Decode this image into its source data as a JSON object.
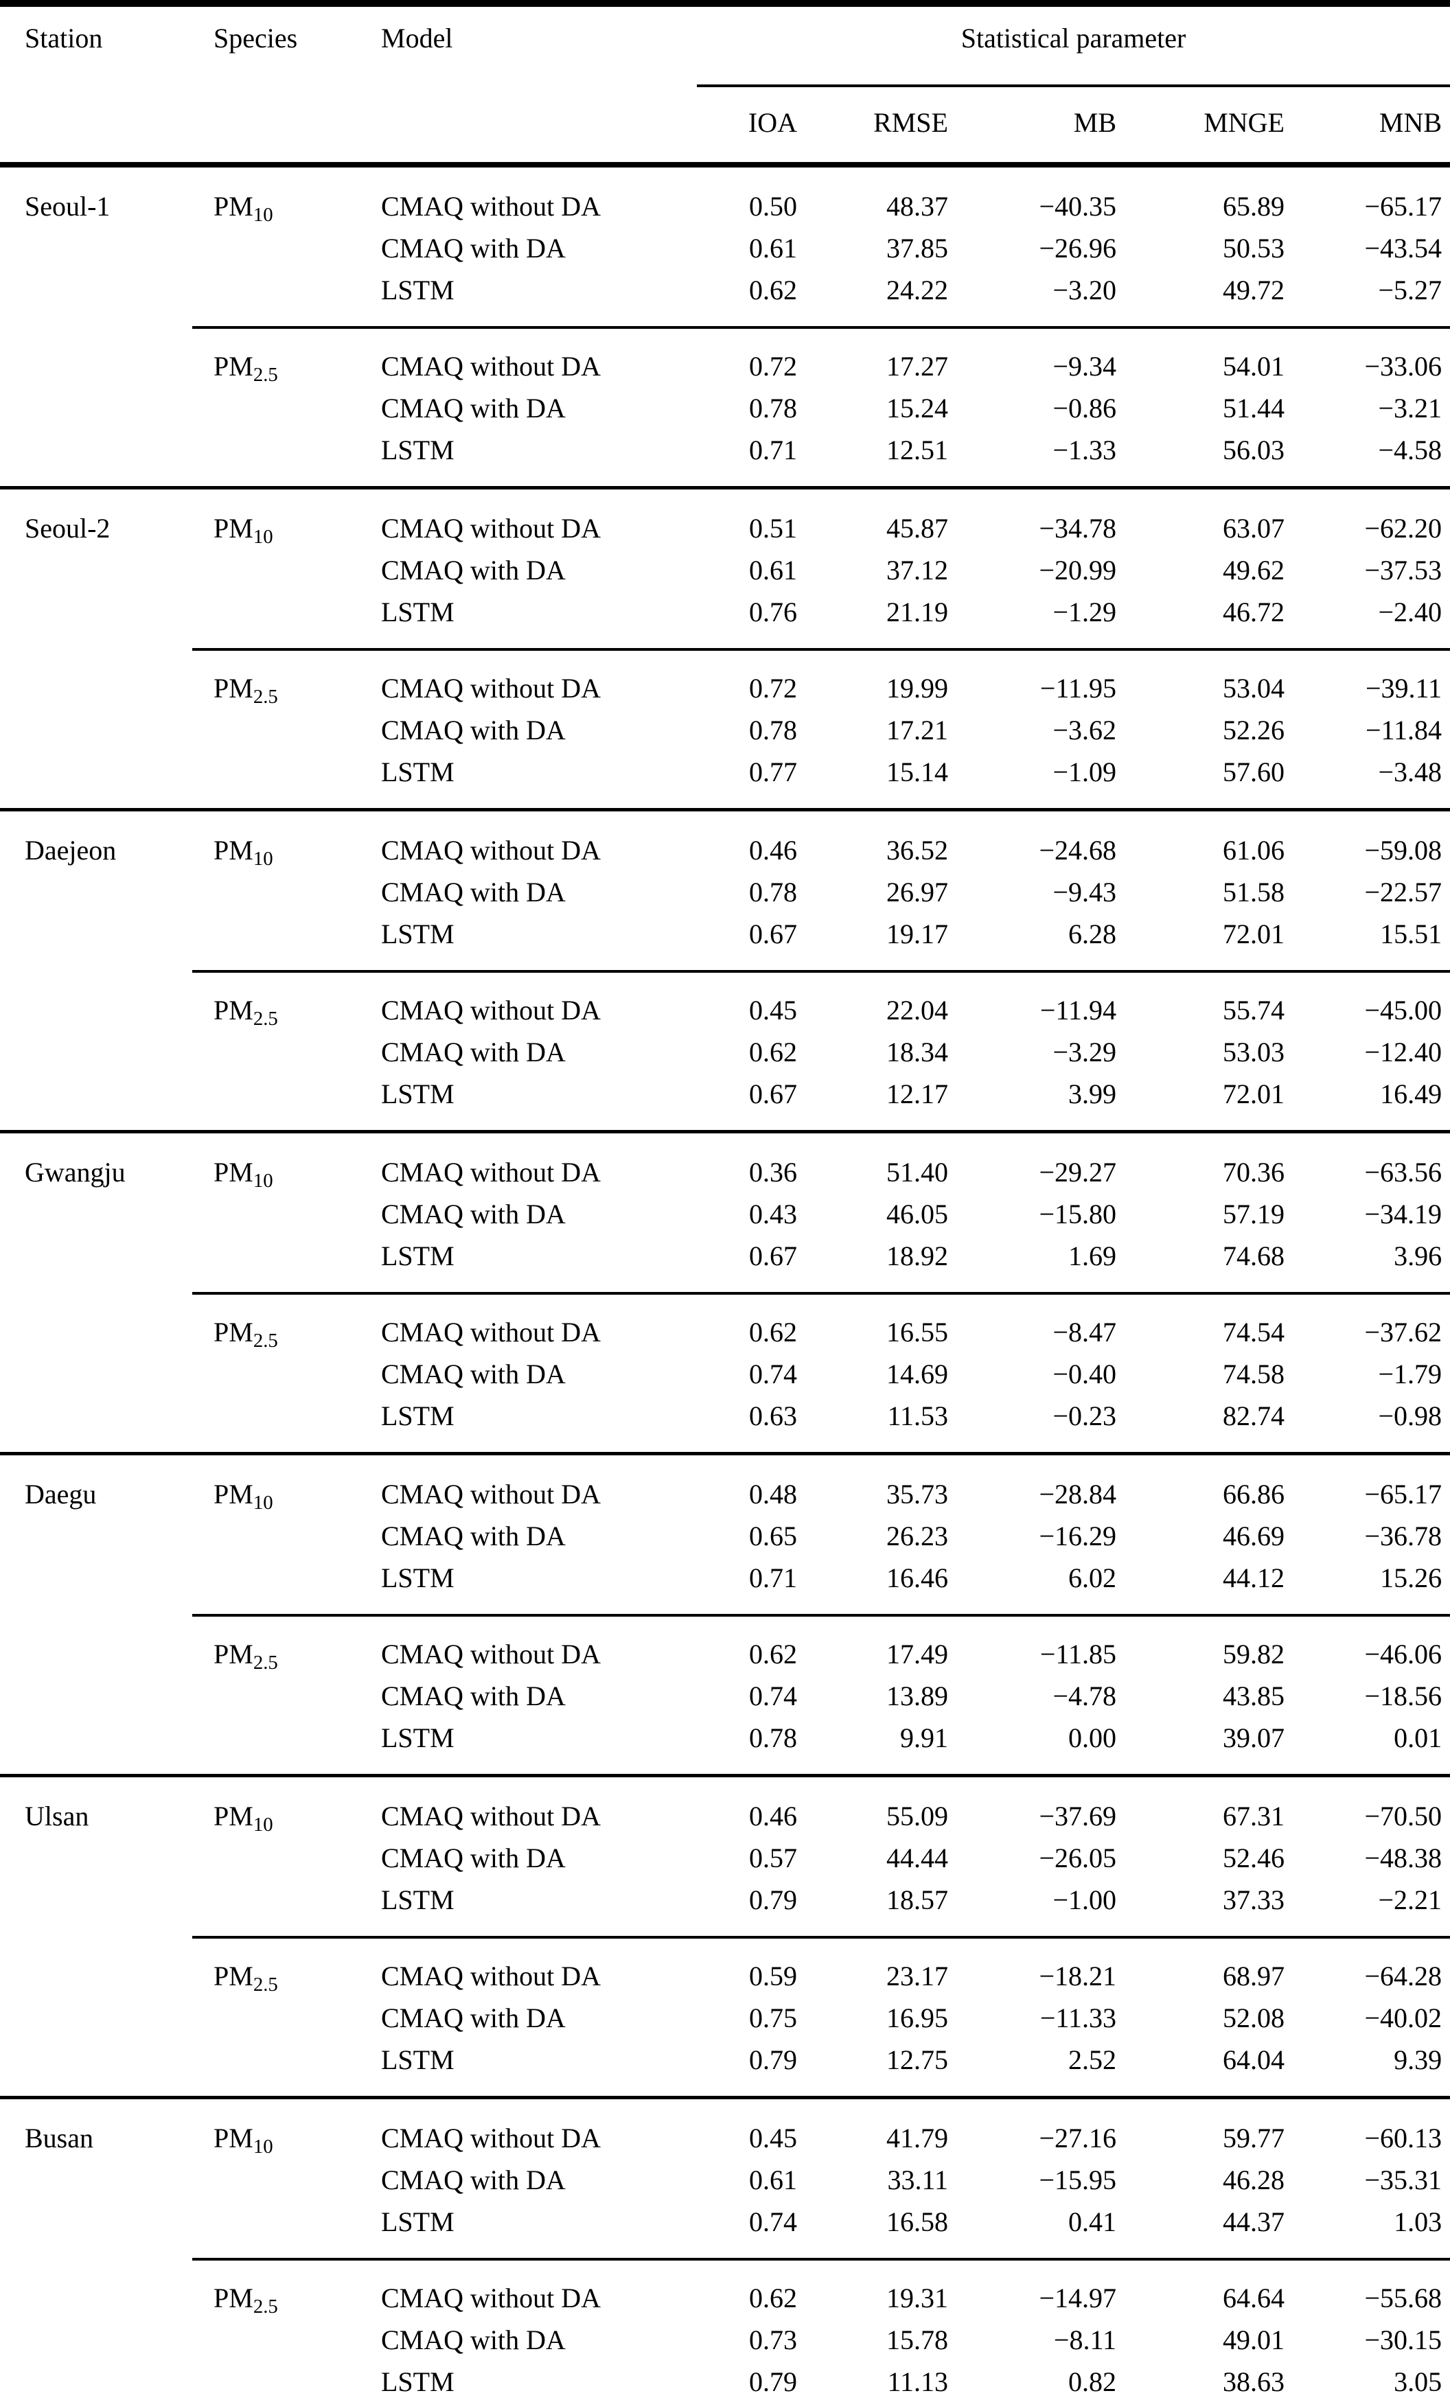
{
  "colors": {
    "text": "#000000",
    "background": "#ffffff",
    "rule": "#000000"
  },
  "table": {
    "columns": {
      "station": "Station",
      "species": "Species",
      "model": "Model",
      "stat_group": "Statistical parameter",
      "stats": [
        "IOA",
        "RMSE",
        "MB",
        "MNGE",
        "MNB"
      ]
    },
    "stations": [
      {
        "name": "Seoul-1",
        "species_blocks": [
          {
            "species_base": "PM",
            "species_sub": "10",
            "rows": [
              {
                "model": "CMAQ without DA",
                "values": [
                  "0.50",
                  "48.37",
                  "−40.35",
                  "65.89",
                  "−65.17"
                ]
              },
              {
                "model": "CMAQ with DA",
                "values": [
                  "0.61",
                  "37.85",
                  "−26.96",
                  "50.53",
                  "−43.54"
                ]
              },
              {
                "model": "LSTM",
                "values": [
                  "0.62",
                  "24.22",
                  "−3.20",
                  "49.72",
                  "−5.27"
                ]
              }
            ]
          },
          {
            "species_base": "PM",
            "species_sub": "2.5",
            "rows": [
              {
                "model": "CMAQ without DA",
                "values": [
                  "0.72",
                  "17.27",
                  "−9.34",
                  "54.01",
                  "−33.06"
                ]
              },
              {
                "model": "CMAQ with DA",
                "values": [
                  "0.78",
                  "15.24",
                  "−0.86",
                  "51.44",
                  "−3.21"
                ]
              },
              {
                "model": "LSTM",
                "values": [
                  "0.71",
                  "12.51",
                  "−1.33",
                  "56.03",
                  "−4.58"
                ]
              }
            ]
          }
        ]
      },
      {
        "name": "Seoul-2",
        "species_blocks": [
          {
            "species_base": "PM",
            "species_sub": "10",
            "rows": [
              {
                "model": "CMAQ without DA",
                "values": [
                  "0.51",
                  "45.87",
                  "−34.78",
                  "63.07",
                  "−62.20"
                ]
              },
              {
                "model": "CMAQ with DA",
                "values": [
                  "0.61",
                  "37.12",
                  "−20.99",
                  "49.62",
                  "−37.53"
                ]
              },
              {
                "model": "LSTM",
                "values": [
                  "0.76",
                  "21.19",
                  "−1.29",
                  "46.72",
                  "−2.40"
                ]
              }
            ]
          },
          {
            "species_base": "PM",
            "species_sub": "2.5",
            "rows": [
              {
                "model": "CMAQ without DA",
                "values": [
                  "0.72",
                  "19.99",
                  "−11.95",
                  "53.04",
                  "−39.11"
                ]
              },
              {
                "model": "CMAQ with DA",
                "values": [
                  "0.78",
                  "17.21",
                  "−3.62",
                  "52.26",
                  "−11.84"
                ]
              },
              {
                "model": "LSTM",
                "values": [
                  "0.77",
                  "15.14",
                  "−1.09",
                  "57.60",
                  "−3.48"
                ]
              }
            ]
          }
        ]
      },
      {
        "name": "Daejeon",
        "species_blocks": [
          {
            "species_base": "PM",
            "species_sub": "10",
            "rows": [
              {
                "model": "CMAQ without DA",
                "values": [
                  "0.46",
                  "36.52",
                  "−24.68",
                  "61.06",
                  "−59.08"
                ]
              },
              {
                "model": "CMAQ with DA",
                "values": [
                  "0.78",
                  "26.97",
                  "−9.43",
                  "51.58",
                  "−22.57"
                ]
              },
              {
                "model": "LSTM",
                "values": [
                  "0.67",
                  "19.17",
                  "6.28",
                  "72.01",
                  "15.51"
                ]
              }
            ]
          },
          {
            "species_base": "PM",
            "species_sub": "2.5",
            "rows": [
              {
                "model": "CMAQ without DA",
                "values": [
                  "0.45",
                  "22.04",
                  "−11.94",
                  "55.74",
                  "−45.00"
                ]
              },
              {
                "model": "CMAQ with DA",
                "values": [
                  "0.62",
                  "18.34",
                  "−3.29",
                  "53.03",
                  "−12.40"
                ]
              },
              {
                "model": "LSTM",
                "values": [
                  "0.67",
                  "12.17",
                  "3.99",
                  "72.01",
                  "16.49"
                ]
              }
            ]
          }
        ]
      },
      {
        "name": "Gwangju",
        "species_blocks": [
          {
            "species_base": "PM",
            "species_sub": "10",
            "rows": [
              {
                "model": "CMAQ without DA",
                "values": [
                  "0.36",
                  "51.40",
                  "−29.27",
                  "70.36",
                  "−63.56"
                ]
              },
              {
                "model": "CMAQ with DA",
                "values": [
                  "0.43",
                  "46.05",
                  "−15.80",
                  "57.19",
                  "−34.19"
                ]
              },
              {
                "model": "LSTM",
                "values": [
                  "0.67",
                  "18.92",
                  "1.69",
                  "74.68",
                  "3.96"
                ]
              }
            ]
          },
          {
            "species_base": "PM",
            "species_sub": "2.5",
            "rows": [
              {
                "model": "CMAQ without DA",
                "values": [
                  "0.62",
                  "16.55",
                  "−8.47",
                  "74.54",
                  "−37.62"
                ]
              },
              {
                "model": "CMAQ with DA",
                "values": [
                  "0.74",
                  "14.69",
                  "−0.40",
                  "74.58",
                  "−1.79"
                ]
              },
              {
                "model": "LSTM",
                "values": [
                  "0.63",
                  "11.53",
                  "−0.23",
                  "82.74",
                  "−0.98"
                ]
              }
            ]
          }
        ]
      },
      {
        "name": "Daegu",
        "species_blocks": [
          {
            "species_base": "PM",
            "species_sub": "10",
            "rows": [
              {
                "model": "CMAQ without DA",
                "values": [
                  "0.48",
                  "35.73",
                  "−28.84",
                  "66.86",
                  "−65.17"
                ]
              },
              {
                "model": "CMAQ with DA",
                "values": [
                  "0.65",
                  "26.23",
                  "−16.29",
                  "46.69",
                  "−36.78"
                ]
              },
              {
                "model": "LSTM",
                "values": [
                  "0.71",
                  "16.46",
                  "6.02",
                  "44.12",
                  "15.26"
                ]
              }
            ]
          },
          {
            "species_base": "PM",
            "species_sub": "2.5",
            "rows": [
              {
                "model": "CMAQ without DA",
                "values": [
                  "0.62",
                  "17.49",
                  "−11.85",
                  "59.82",
                  "−46.06"
                ]
              },
              {
                "model": "CMAQ with DA",
                "values": [
                  "0.74",
                  "13.89",
                  "−4.78",
                  "43.85",
                  "−18.56"
                ]
              },
              {
                "model": "LSTM",
                "values": [
                  "0.78",
                  "9.91",
                  "0.00",
                  "39.07",
                  "0.01"
                ]
              }
            ]
          }
        ]
      },
      {
        "name": "Ulsan",
        "species_blocks": [
          {
            "species_base": "PM",
            "species_sub": "10",
            "rows": [
              {
                "model": "CMAQ without DA",
                "values": [
                  "0.46",
                  "55.09",
                  "−37.69",
                  "67.31",
                  "−70.50"
                ]
              },
              {
                "model": "CMAQ with DA",
                "values": [
                  "0.57",
                  "44.44",
                  "−26.05",
                  "52.46",
                  "−48.38"
                ]
              },
              {
                "model": "LSTM",
                "values": [
                  "0.79",
                  "18.57",
                  "−1.00",
                  "37.33",
                  "−2.21"
                ]
              }
            ]
          },
          {
            "species_base": "PM",
            "species_sub": "2.5",
            "rows": [
              {
                "model": "CMAQ without DA",
                "values": [
                  "0.59",
                  "23.17",
                  "−18.21",
                  "68.97",
                  "−64.28"
                ]
              },
              {
                "model": "CMAQ with DA",
                "values": [
                  "0.75",
                  "16.95",
                  "−11.33",
                  "52.08",
                  "−40.02"
                ]
              },
              {
                "model": "LSTM",
                "values": [
                  "0.79",
                  "12.75",
                  "2.52",
                  "64.04",
                  "9.39"
                ]
              }
            ]
          }
        ]
      },
      {
        "name": "Busan",
        "species_blocks": [
          {
            "species_base": "PM",
            "species_sub": "10",
            "rows": [
              {
                "model": "CMAQ without DA",
                "values": [
                  "0.45",
                  "41.79",
                  "−27.16",
                  "59.77",
                  "−60.13"
                ]
              },
              {
                "model": "CMAQ with DA",
                "values": [
                  "0.61",
                  "33.11",
                  "−15.95",
                  "46.28",
                  "−35.31"
                ]
              },
              {
                "model": "LSTM",
                "values": [
                  "0.74",
                  "16.58",
                  "0.41",
                  "44.37",
                  "1.03"
                ]
              }
            ]
          },
          {
            "species_base": "PM",
            "species_sub": "2.5",
            "rows": [
              {
                "model": "CMAQ without DA",
                "values": [
                  "0.62",
                  "19.31",
                  "−14.97",
                  "64.64",
                  "−55.68"
                ]
              },
              {
                "model": "CMAQ with DA",
                "values": [
                  "0.73",
                  "15.78",
                  "−8.11",
                  "49.01",
                  "−30.15"
                ]
              },
              {
                "model": "LSTM",
                "values": [
                  "0.79",
                  "11.13",
                  "0.82",
                  "38.63",
                  "3.05"
                ]
              }
            ]
          }
        ]
      }
    ]
  }
}
